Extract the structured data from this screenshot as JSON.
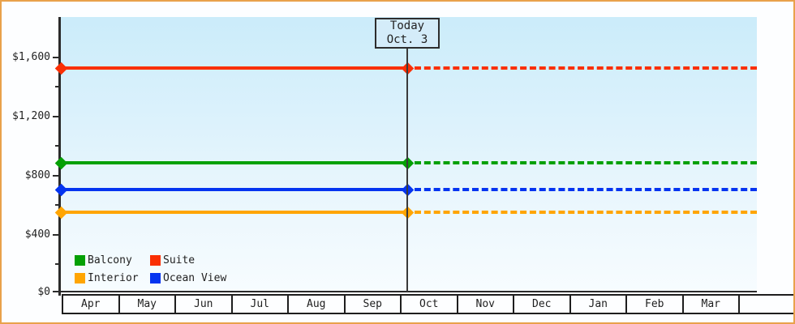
{
  "frame": {
    "border_color": "#e9a24b",
    "background": "#fdfeff"
  },
  "y_axis": {
    "labels": [
      "$1,600",
      "$1,200",
      "$800",
      "$400",
      "$0"
    ]
  },
  "chart_data": {
    "type": "line",
    "title": "",
    "x": [
      "Apr",
      "May",
      "Jun",
      "Jul",
      "Aug",
      "Sep",
      "Oct",
      "Nov",
      "Dec",
      "Jan",
      "Feb",
      "Mar"
    ],
    "series": [
      {
        "name": "Balcony",
        "color": "#04a004",
        "value": 879
      },
      {
        "name": "Suite",
        "color": "#fa2f04",
        "value": 1529
      },
      {
        "name": "Interior",
        "color": "#ffa502",
        "value": 549
      },
      {
        "name": "Ocean View",
        "color": "#0434f0",
        "value": 699
      }
    ],
    "values_note": "Each series is a constant (flat) price line across all months; values estimated from the y-axis",
    "today": {
      "label": "Today",
      "date": "Oct. 3",
      "month": "Oct",
      "day": 3
    },
    "line_style": {
      "before_today": "solid",
      "after_today": "dashed"
    },
    "ylim": [
      0,
      1880
    ],
    "yticks": [
      0,
      400,
      800,
      1200,
      1600
    ],
    "ytick_labels": [
      "$0",
      "$400",
      "$800",
      "$1,200",
      "$1,600"
    ],
    "minor_tick_step": 200,
    "grid": false,
    "legend_position": "inside-bottom-left"
  },
  "colors": {
    "axis": "#2b2b2b",
    "today_line": "#3a3a3a",
    "today_box_fill": "#d4ecf9",
    "today_box_border": "#2d2d2d",
    "plot_gradient_top": "#cbecfa",
    "plot_gradient_bottom": "#f7fcff"
  }
}
